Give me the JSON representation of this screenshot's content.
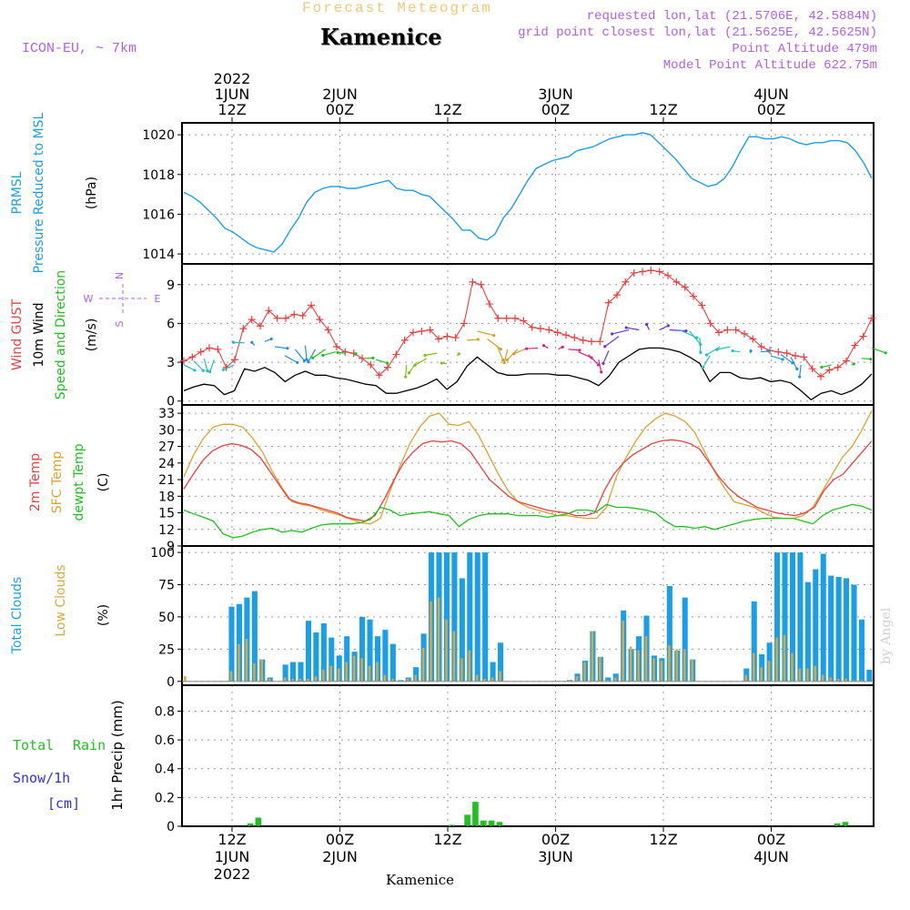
{
  "header": {
    "forecast_title": "Forecast Meteogram",
    "station": "Kamenice",
    "model": "ICON-EU, ~ 7km",
    "requested": "requested lon,lat (21.5706E, 42.5884N)",
    "gridpoint": "grid point closest lon,lat (21.5625E, 42.5625N)",
    "point_alt": "Point Altitude 479m",
    "model_alt": "Model Point Altitude 622.75m",
    "footer_station": "Kamenice",
    "credit": "by Angel"
  },
  "colors": {
    "title": "#f0c878",
    "magenta": "#b060e0",
    "pressure": "#1a9ee8",
    "gust": "#e84040",
    "wind": "#000000",
    "temp2m": "#e84040",
    "sfctemp": "#e0a030",
    "dewpt": "#20c020",
    "total_clouds": "#1a9ee8",
    "low_clouds": "#d8a840",
    "rain": "#20c020",
    "snow": "#3030e0"
  },
  "chart_data": [
    {
      "type": "line",
      "name": "pressure",
      "ylabel_lines": [
        "PRMSL",
        "Pressure Reduced to MSL",
        "(hPa)"
      ],
      "ylim": [
        1013.5,
        1020.6
      ],
      "yticks": [
        1014,
        1016,
        1018,
        1020
      ],
      "x_hours": [
        0,
        1,
        2,
        3,
        4,
        5,
        6,
        7,
        8,
        9,
        10,
        11,
        12,
        13,
        14,
        15,
        16,
        17,
        18,
        19,
        20,
        21,
        22,
        23,
        24,
        25,
        26,
        27,
        28,
        29,
        30,
        31,
        32,
        33,
        34,
        35,
        36,
        37,
        38,
        39,
        40,
        41,
        42,
        43,
        44,
        45,
        46,
        47,
        48,
        49,
        50,
        51,
        52,
        53,
        54,
        55,
        56,
        57,
        58,
        59,
        60,
        61,
        62,
        63,
        64,
        65,
        66,
        67,
        68,
        69,
        70,
        71,
        72,
        73,
        74,
        75,
        76,
        77,
        78,
        79,
        80,
        81,
        82,
        83,
        84,
        85,
        86,
        87,
        88,
        89,
        90,
        91,
        92,
        93,
        94,
        95,
        96,
        97,
        98,
        99,
        100,
        101,
        102,
        103,
        104,
        105,
        106,
        107,
        108,
        109,
        110,
        111,
        112,
        113,
        114,
        115,
        116,
        117,
        118,
        119,
        120,
        121,
        122,
        123,
        124,
        125,
        126,
        127,
        128
      ],
      "series": [
        {
          "name": "PRMSL",
          "values": [
            1017.1,
            1016.9,
            1016.6,
            1016.2,
            1015.8,
            1015.3,
            1015.1,
            1014.8,
            1014.5,
            1014.3,
            1014.2,
            1014.1,
            1014.5,
            1015.2,
            1015.8,
            1016.6,
            1017.1,
            1017.3,
            1017.4,
            1017.4,
            1017.3,
            1017.3,
            1017.4,
            1017.5,
            1017.6,
            1017.7,
            1017.3,
            1017.2,
            1017.2,
            1017.0,
            1016.9,
            1016.5,
            1016.1,
            1015.7,
            1015.2,
            1015.2,
            1014.8,
            1014.7,
            1015.0,
            1015.8,
            1016.3,
            1017.0,
            1017.7,
            1018.3,
            1018.5,
            1018.7,
            1018.8,
            1018.9,
            1019.2,
            1019.3,
            1019.4,
            1019.6,
            1019.8,
            1019.9,
            1020.0,
            1020.0,
            1020.1,
            1020.0,
            1019.6,
            1019.2,
            1018.8,
            1018.3,
            1017.8,
            1017.6,
            1017.4,
            1017.5,
            1017.8,
            1018.4,
            1019.2,
            1019.9,
            1019.9,
            1019.8,
            1019.8,
            1019.9,
            1019.8,
            1019.6,
            1019.5,
            1019.6,
            1019.6,
            1019.7,
            1019.7,
            1019.6,
            1019.2,
            1018.6,
            1017.8
          ]
        }
      ]
    },
    {
      "type": "line",
      "name": "wind",
      "ylabel_lines": [
        "Wind GUST",
        "10m Wind",
        "Speed and Direction",
        "(m/s)"
      ],
      "compass": {
        "n": "N",
        "s": "S",
        "w": "W",
        "e": "E"
      },
      "ylim": [
        -0.3,
        10.6
      ],
      "yticks": [
        0,
        3,
        6,
        9
      ],
      "series": [
        {
          "name": "Wind GUST",
          "values": [
            3.1,
            3.4,
            3.8,
            4.1,
            4.0,
            2.6,
            3.2,
            5.6,
            6.3,
            5.8,
            7.0,
            6.4,
            6.4,
            6.7,
            6.6,
            7.4,
            6.3,
            5.5,
            4.2,
            3.8,
            3.7,
            3.3,
            2.8,
            2.0,
            2.6,
            3.6,
            4.7,
            5.3,
            5.4,
            5.5,
            4.8,
            5.0,
            4.9,
            6.0,
            9.2,
            9.0,
            7.5,
            6.4,
            6.4,
            6.4,
            6.2,
            5.7,
            5.6,
            5.5,
            5.3,
            5.1,
            4.9,
            4.7,
            4.6,
            4.6,
            7.6,
            8.2,
            9.2,
            9.9,
            10.0,
            10.1,
            10.0,
            9.7,
            9.2,
            8.8,
            8.1,
            7.4,
            6.0,
            5.3,
            5.5,
            5.5,
            5.2,
            4.8,
            4.2,
            3.9,
            3.8,
            3.7,
            3.5,
            3.4,
            2.5,
            1.9,
            2.4,
            2.6,
            3.1,
            4.3,
            5.0,
            6.4
          ]
        },
        {
          "name": "10m Wind",
          "values": [
            0.8,
            1.1,
            1.3,
            1.2,
            0.5,
            0.8,
            2.5,
            2.3,
            2.6,
            2.2,
            1.5,
            2.0,
            2.3,
            2.0,
            2.0,
            1.8,
            1.7,
            1.5,
            1.3,
            1.2,
            0.6,
            0.6,
            0.8,
            1.0,
            1.3,
            1.7,
            0.9,
            1.5,
            2.7,
            3.4,
            2.8,
            2.2,
            2.0,
            2.0,
            2.1,
            2.1,
            2.1,
            2.0,
            2.0,
            1.8,
            1.6,
            1.2,
            1.9,
            3.0,
            3.5,
            4.0,
            4.1,
            4.1,
            4.0,
            3.8,
            3.4,
            2.9,
            1.5,
            2.2,
            2.2,
            1.8,
            1.7,
            1.8,
            1.5,
            1.6,
            1.4,
            0.8,
            0.1,
            0.6,
            0.8,
            0.5,
            0.8,
            1.3,
            2.1
          ]
        }
      ]
    },
    {
      "type": "line",
      "name": "temperature",
      "ylabel_lines": [
        "2m Temp",
        "SFC Temp",
        "dewpt Temp",
        "(C)"
      ],
      "ylim": [
        9,
        34.5
      ],
      "yticks": [
        9,
        12,
        15,
        18,
        21,
        24,
        27,
        30,
        33
      ],
      "series": [
        {
          "name": "2m Temp",
          "values": [
            19.3,
            22.0,
            24.5,
            26.2,
            27.1,
            27.5,
            27.2,
            26.5,
            25.0,
            22.5,
            20.0,
            17.5,
            16.8,
            16.5,
            16.0,
            15.5,
            15.0,
            14.2,
            13.8,
            13.5,
            14.5,
            17.5,
            21.0,
            24.0,
            26.0,
            27.5,
            28.0,
            27.8,
            28.0,
            27.5,
            26.0,
            23.5,
            21.0,
            19.5,
            18.0,
            17.0,
            16.5,
            16.0,
            15.5,
            15.2,
            15.0,
            14.5,
            14.5,
            15.0,
            19.0,
            22.0,
            24.0,
            25.5,
            26.5,
            27.5,
            28.0,
            28.2,
            28.0,
            27.5,
            26.5,
            24.0,
            21.5,
            19.5,
            18.0,
            17.0,
            16.0,
            15.5,
            15.0,
            14.7,
            14.5,
            15.0,
            16.0,
            19.0,
            21.0,
            22.0,
            24.0,
            26.0,
            28.0
          ]
        },
        {
          "name": "SFC Temp",
          "values": [
            21.5,
            25.5,
            28.5,
            30.5,
            31.0,
            31.0,
            30.5,
            28.5,
            26.0,
            22.5,
            19.5,
            17.0,
            16.5,
            16.2,
            15.5,
            15.0,
            14.5,
            13.8,
            13.2,
            13.0,
            14.0,
            19.0,
            23.5,
            27.5,
            30.5,
            32.5,
            33.0,
            31.0,
            30.8,
            31.5,
            29.0,
            25.5,
            22.0,
            19.0,
            17.0,
            16.0,
            15.5,
            15.0,
            14.5,
            14.5,
            14.2,
            14.0,
            14.0,
            16.0,
            21.5,
            25.0,
            28.0,
            30.5,
            32.0,
            33.0,
            32.5,
            31.5,
            29.5,
            26.0,
            22.5,
            19.5,
            17.0,
            16.5,
            16.0,
            15.0,
            14.2,
            14.0,
            14.0,
            14.5,
            16.0,
            19.0,
            22.0,
            25.0,
            27.0,
            30.0,
            33.5
          ]
        },
        {
          "name": "dewpt Temp",
          "values": [
            15.5,
            14.8,
            14.2,
            13.5,
            11.2,
            10.5,
            10.8,
            11.5,
            12.0,
            12.2,
            11.5,
            11.8,
            11.5,
            12.2,
            12.8,
            13.0,
            13.0,
            13.0,
            13.2,
            13.8,
            16.0,
            15.5,
            14.5,
            14.8,
            15.0,
            15.2,
            14.8,
            14.5,
            12.5,
            13.8,
            14.5,
            14.8,
            14.8,
            14.8,
            14.5,
            14.5,
            14.5,
            14.2,
            14.5,
            14.8,
            15.5,
            15.5,
            15.2,
            16.5,
            16.0,
            16.0,
            15.8,
            15.5,
            15.0,
            13.5,
            12.5,
            12.5,
            12.2,
            12.5,
            12.0,
            12.5,
            13.0,
            13.5,
            13.8,
            14.0,
            14.0,
            14.0,
            14.0,
            13.5,
            13.0,
            14.5,
            15.5,
            16.0,
            16.5,
            16.2,
            15.5
          ]
        }
      ]
    },
    {
      "type": "bar",
      "name": "clouds",
      "ylabel_lines": [
        "Total Clouds",
        "Low Clouds",
        "(%)"
      ],
      "ylim": [
        -3,
        105
      ],
      "yticks": [
        0,
        25,
        50,
        75,
        100
      ],
      "series": [
        {
          "name": "Total Clouds",
          "values": [
            0,
            0,
            0,
            0,
            0,
            0,
            58,
            60,
            65,
            70,
            17,
            3,
            0,
            13,
            15,
            15,
            47,
            38,
            45,
            34,
            20,
            35,
            23,
            50,
            48,
            35,
            40,
            29,
            1,
            3,
            11,
            37,
            100,
            100,
            100,
            100,
            80,
            100,
            100,
            100,
            15,
            30,
            0,
            0,
            0,
            0,
            0,
            0,
            0,
            0,
            1,
            6,
            16,
            39,
            19,
            3,
            6,
            55,
            25,
            35,
            51,
            20,
            18,
            74,
            24,
            65,
            17,
            0,
            0,
            0,
            0,
            0,
            0,
            10,
            62,
            21,
            30,
            100,
            100,
            100,
            100,
            77,
            87,
            99,
            82,
            81,
            80,
            75,
            48,
            9
          ]
        },
        {
          "name": "Low Clouds",
          "values": [
            4,
            0,
            0,
            0,
            0,
            0,
            8,
            29,
            33,
            14,
            17,
            2,
            0,
            3,
            2,
            2,
            2,
            4,
            9,
            12,
            10,
            15,
            20,
            18,
            12,
            15,
            5,
            2,
            1,
            2,
            5,
            26,
            62,
            65,
            48,
            39,
            18,
            24,
            5,
            2,
            3,
            8,
            0,
            0,
            0,
            0,
            0,
            0,
            0,
            0,
            1,
            4,
            15,
            39,
            19,
            1,
            3,
            47,
            27,
            24,
            35,
            18,
            16,
            28,
            25,
            25,
            17,
            0,
            0,
            0,
            0,
            0,
            0,
            5,
            22,
            11,
            16,
            34,
            36,
            22,
            10,
            10,
            12,
            5,
            3,
            2,
            2,
            1,
            1,
            0
          ]
        }
      ]
    },
    {
      "type": "bar",
      "name": "precip",
      "ylabel_lines": [
        "1hr Precip (mm)"
      ],
      "left_labels": [
        "Total",
        "Rain",
        "Snow/1h",
        "[cm]"
      ],
      "ylim": [
        0,
        0.98
      ],
      "yticks": [
        0,
        0.2,
        0.4,
        0.6,
        0.8
      ],
      "series": [
        {
          "name": "Total Rain",
          "values": [
            0,
            0,
            0,
            0,
            0,
            0,
            0,
            0,
            0.02,
            0.06,
            0,
            0,
            0,
            0,
            0,
            0,
            0,
            0,
            0,
            0,
            0,
            0,
            0,
            0,
            0,
            0,
            0,
            0,
            0,
            0,
            0,
            0,
            0,
            0.01,
            0,
            0.08,
            0.17,
            0.04,
            0.04,
            0.03,
            0,
            0,
            0,
            0,
            0,
            0,
            0,
            0,
            0,
            0,
            0,
            0,
            0,
            0,
            0,
            0,
            0,
            0,
            0,
            0,
            0,
            0,
            0,
            0,
            0,
            0,
            0,
            0,
            0,
            0,
            0,
            0,
            0,
            0,
            0,
            0,
            0,
            0,
            0,
            0,
            0,
            0.02,
            0.03,
            0,
            0,
            0
          ]
        }
      ]
    }
  ],
  "xaxis": {
    "top_ticks": [
      {
        "hour": 0,
        "day": "1JUN",
        "time": "12Z",
        "year": "2022"
      },
      {
        "hour": 12,
        "day": "2JUN",
        "time": "00Z",
        "year": ""
      },
      {
        "hour": 24,
        "day": "",
        "time": "12Z",
        "year": ""
      },
      {
        "hour": 36,
        "day": "3JUN",
        "time": "00Z",
        "year": ""
      },
      {
        "hour": 48,
        "day": "",
        "time": "12Z",
        "year": ""
      },
      {
        "hour": 60,
        "day": "4JUN",
        "time": "00Z",
        "year": ""
      }
    ],
    "bottom_ticks": [
      {
        "hour": 0,
        "time": "12Z",
        "day": "1JUN",
        "year": "2022"
      },
      {
        "hour": 12,
        "time": "00Z",
        "day": "2JUN",
        "year": ""
      },
      {
        "hour": 24,
        "time": "12Z",
        "day": "",
        "year": ""
      },
      {
        "hour": 36,
        "time": "00Z",
        "day": "3JUN",
        "year": ""
      },
      {
        "hour": 48,
        "time": "12Z",
        "day": "",
        "year": ""
      },
      {
        "hour": 60,
        "time": "00Z",
        "day": "4JUN",
        "year": ""
      }
    ]
  }
}
